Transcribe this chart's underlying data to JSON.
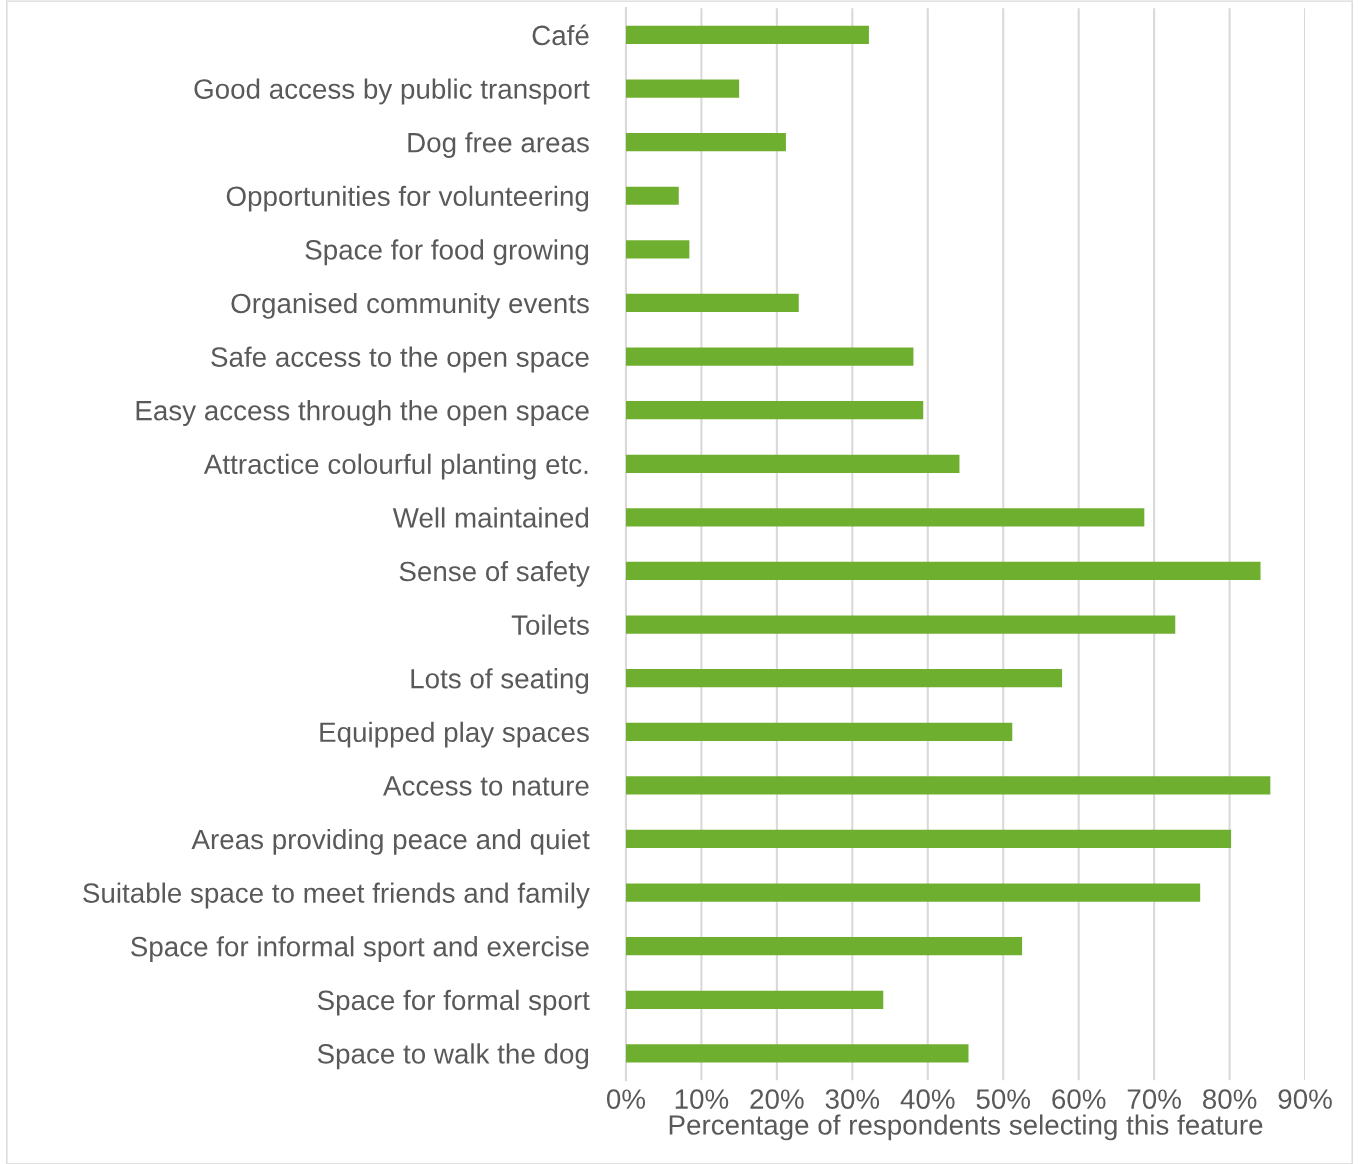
{
  "chart_data": {
    "type": "bar",
    "orientation": "horizontal",
    "xlabel": "Percentage of respondents selecting this feature",
    "categories": [
      "Café",
      "Good access by public transport",
      "Dog free areas",
      "Opportunities for volunteering",
      "Space for food growing",
      "Organised community events",
      "Safe access to the open space",
      "Easy access through the open space",
      "Attractice colourful planting etc.",
      "Well maintained",
      "Sense of safety",
      "Toilets",
      "Lots of seating",
      "Equipped play spaces",
      "Access to nature",
      "Areas providing peace and quiet",
      "Suitable space to meet friends and family",
      "Space for informal sport and exercise",
      "Space for formal sport",
      "Space to walk the dog"
    ],
    "values": [
      32.2,
      15.0,
      21.2,
      7.0,
      8.4,
      22.9,
      38.1,
      39.4,
      44.2,
      68.7,
      84.1,
      72.8,
      57.8,
      51.2,
      85.4,
      80.2,
      76.1,
      52.5,
      34.1,
      45.4
    ],
    "color": "#6faf2f",
    "xlim": [
      0,
      90
    ],
    "xticks": [
      {
        "value": 0,
        "label": "0%"
      },
      {
        "value": 10,
        "label": "10%"
      },
      {
        "value": 20,
        "label": "20%"
      },
      {
        "value": 30,
        "label": "30%"
      },
      {
        "value": 40,
        "label": "40%"
      },
      {
        "value": 50,
        "label": "50%"
      },
      {
        "value": 60,
        "label": "60%"
      },
      {
        "value": 70,
        "label": "70%"
      },
      {
        "value": 80,
        "label": "80%"
      },
      {
        "value": 90,
        "label": "90%"
      }
    ],
    "grid": "x",
    "legend": false
  }
}
